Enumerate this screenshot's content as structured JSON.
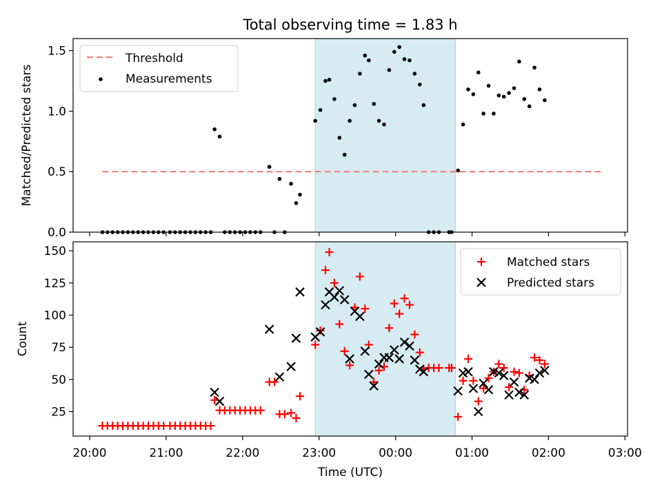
{
  "figure": {
    "title": "Total observing time = 1.83 h"
  },
  "chart_data": [
    {
      "type": "scatter",
      "panel": "top",
      "title": "Total observing time = 1.83 h",
      "xlabel": "",
      "ylabel": "Matched/Predicted stars",
      "xlim": [
        "20:00",
        "03:00"
      ],
      "ylim": [
        0,
        1.6
      ],
      "yticks": [
        "0.0",
        "0.5",
        "1.0",
        "1.5"
      ],
      "shaded_interval": [
        "22:57",
        "00:47"
      ],
      "legend_position": "top-left",
      "legend": [
        "Threshold",
        "Measurements"
      ],
      "threshold": {
        "name": "Threshold",
        "value": 0.5,
        "x_start": "20:10",
        "x_end": "02:41",
        "color": "#f08080"
      },
      "series": [
        {
          "name": "Measurements",
          "color": "#000000",
          "points": [
            [
              "20:10",
              0
            ],
            [
              "20:14",
              0
            ],
            [
              "20:18",
              0
            ],
            [
              "20:22",
              0
            ],
            [
              "20:26",
              0
            ],
            [
              "20:30",
              0
            ],
            [
              "20:34",
              0
            ],
            [
              "20:38",
              0
            ],
            [
              "20:42",
              0
            ],
            [
              "20:46",
              0
            ],
            [
              "20:50",
              0
            ],
            [
              "20:54",
              0
            ],
            [
              "20:58",
              0
            ],
            [
              "21:03",
              0
            ],
            [
              "21:07",
              0
            ],
            [
              "21:11",
              0
            ],
            [
              "21:15",
              0
            ],
            [
              "21:19",
              0
            ],
            [
              "21:23",
              0
            ],
            [
              "21:27",
              0
            ],
            [
              "21:31",
              0
            ],
            [
              "21:35",
              0
            ],
            [
              "21:38",
              0.85
            ],
            [
              "21:42",
              0.79
            ],
            [
              "21:46",
              0
            ],
            [
              "21:50",
              0
            ],
            [
              "21:54",
              0
            ],
            [
              "21:58",
              0
            ],
            [
              "22:02",
              0
            ],
            [
              "22:06",
              0
            ],
            [
              "22:10",
              0
            ],
            [
              "22:14",
              0
            ],
            [
              "22:21",
              0.54
            ],
            [
              "22:25",
              0
            ],
            [
              "22:29",
              0.44
            ],
            [
              "22:33",
              0
            ],
            [
              "22:38",
              0.4
            ],
            [
              "22:42",
              0.24
            ],
            [
              "22:45",
              0.31
            ],
            [
              "22:57",
              0.92
            ],
            [
              "23:01",
              1.01
            ],
            [
              "23:05",
              1.25
            ],
            [
              "23:08",
              1.26
            ],
            [
              "23:12",
              1.1
            ],
            [
              "23:16",
              0.78
            ],
            [
              "23:20",
              0.64
            ],
            [
              "23:24",
              0.92
            ],
            [
              "23:28",
              1.05
            ],
            [
              "23:32",
              1.31
            ],
            [
              "23:36",
              1.46
            ],
            [
              "23:39",
              1.42
            ],
            [
              "23:43",
              1.06
            ],
            [
              "23:47",
              0.92
            ],
            [
              "23:51",
              0.89
            ],
            [
              "23:55",
              1.34
            ],
            [
              "23:59",
              1.49
            ],
            [
              "00:03",
              1.53
            ],
            [
              "00:07",
              1.43
            ],
            [
              "00:11",
              1.42
            ],
            [
              "00:15",
              1.31
            ],
            [
              "00:19",
              1.22
            ],
            [
              "00:22",
              1.05
            ],
            [
              "00:26",
              0
            ],
            [
              "00:30",
              0
            ],
            [
              "00:34",
              0
            ],
            [
              "00:42",
              0
            ],
            [
              "00:44",
              0
            ],
            [
              "00:49",
              0.51
            ],
            [
              "00:53",
              0.89
            ],
            [
              "00:57",
              1.18
            ],
            [
              "01:01",
              1.14
            ],
            [
              "01:05",
              1.32
            ],
            [
              "01:09",
              0.98
            ],
            [
              "01:13",
              1.21
            ],
            [
              "01:17",
              0.98
            ],
            [
              "01:21",
              1.13
            ],
            [
              "01:25",
              1.12
            ],
            [
              "01:29",
              1.15
            ],
            [
              "01:33",
              1.19
            ],
            [
              "01:37",
              1.41
            ],
            [
              "01:41",
              1.1
            ],
            [
              "01:45",
              1.04
            ],
            [
              "01:49",
              1.36
            ],
            [
              "01:53",
              1.18
            ],
            [
              "01:57",
              1.09
            ]
          ]
        }
      ]
    },
    {
      "type": "scatter",
      "panel": "bottom",
      "xlabel": "Time (UTC)",
      "ylabel": "Count",
      "xlim": [
        "20:00",
        "03:00"
      ],
      "ylim": [
        6,
        157
      ],
      "xticks": [
        "20:00",
        "21:00",
        "22:00",
        "23:00",
        "00:00",
        "01:00",
        "02:00",
        "03:00"
      ],
      "yticks": [
        "25",
        "50",
        "75",
        "100",
        "125",
        "150"
      ],
      "shaded_interval": [
        "22:57",
        "00:47"
      ],
      "legend_position": "top-right",
      "legend": [
        "Matched stars",
        "Predicted stars"
      ],
      "series": [
        {
          "name": "Matched stars",
          "marker": "+",
          "color": "#ff0000",
          "points": [
            [
              "20:10",
              14
            ],
            [
              "20:14",
              14
            ],
            [
              "20:18",
              14
            ],
            [
              "20:22",
              14
            ],
            [
              "20:26",
              14
            ],
            [
              "20:30",
              14
            ],
            [
              "20:34",
              14
            ],
            [
              "20:38",
              14
            ],
            [
              "20:42",
              14
            ],
            [
              "20:46",
              14
            ],
            [
              "20:50",
              14
            ],
            [
              "20:54",
              14
            ],
            [
              "20:58",
              14
            ],
            [
              "21:03",
              14
            ],
            [
              "21:07",
              14
            ],
            [
              "21:11",
              14
            ],
            [
              "21:15",
              14
            ],
            [
              "21:19",
              14
            ],
            [
              "21:23",
              14
            ],
            [
              "21:27",
              14
            ],
            [
              "21:31",
              14
            ],
            [
              "21:35",
              14
            ],
            [
              "21:38",
              34
            ],
            [
              "21:42",
              26
            ],
            [
              "21:46",
              26
            ],
            [
              "21:50",
              26
            ],
            [
              "21:54",
              26
            ],
            [
              "21:58",
              26
            ],
            [
              "22:02",
              26
            ],
            [
              "22:06",
              26
            ],
            [
              "22:10",
              26
            ],
            [
              "22:14",
              26
            ],
            [
              "22:21",
              48
            ],
            [
              "22:25",
              48
            ],
            [
              "22:29",
              23
            ],
            [
              "22:33",
              23
            ],
            [
              "22:38",
              24
            ],
            [
              "22:42",
              20
            ],
            [
              "22:45",
              37
            ],
            [
              "22:57",
              77
            ],
            [
              "23:01",
              88
            ],
            [
              "23:05",
              135
            ],
            [
              "23:08",
              149
            ],
            [
              "23:12",
              125
            ],
            [
              "23:16",
              93
            ],
            [
              "23:20",
              72
            ],
            [
              "23:24",
              61
            ],
            [
              "23:28",
              106
            ],
            [
              "23:32",
              130
            ],
            [
              "23:36",
              105
            ],
            [
              "23:39",
              77
            ],
            [
              "23:43",
              48
            ],
            [
              "23:47",
              57
            ],
            [
              "23:51",
              60
            ],
            [
              "23:55",
              90
            ],
            [
              "23:59",
              109
            ],
            [
              "00:03",
              101
            ],
            [
              "00:07",
              113
            ],
            [
              "00:11",
              108
            ],
            [
              "00:15",
              85
            ],
            [
              "00:19",
              71
            ],
            [
              "00:22",
              58
            ],
            [
              "00:26",
              59
            ],
            [
              "00:30",
              59
            ],
            [
              "00:34",
              59
            ],
            [
              "00:42",
              59
            ],
            [
              "00:44",
              59
            ],
            [
              "00:49",
              21
            ],
            [
              "00:53",
              49
            ],
            [
              "00:57",
              66
            ],
            [
              "01:01",
              49
            ],
            [
              "01:05",
              33
            ],
            [
              "01:09",
              43
            ],
            [
              "01:13",
              51
            ],
            [
              "01:17",
              56
            ],
            [
              "01:21",
              62
            ],
            [
              "01:25",
              59
            ],
            [
              "01:29",
              44
            ],
            [
              "01:33",
              56
            ],
            [
              "01:37",
              55
            ],
            [
              "01:41",
              42
            ],
            [
              "01:45",
              53
            ],
            [
              "01:49",
              67
            ],
            [
              "01:53",
              65
            ],
            [
              "01:57",
              62
            ]
          ]
        },
        {
          "name": "Predicted stars",
          "marker": "x",
          "color": "#000000",
          "points": [
            [
              "21:38",
              40
            ],
            [
              "21:42",
              33
            ],
            [
              "22:21",
              89
            ],
            [
              "22:29",
              52
            ],
            [
              "22:38",
              60
            ],
            [
              "22:42",
              82
            ],
            [
              "22:45",
              118
            ],
            [
              "22:57",
              83
            ],
            [
              "23:01",
              87
            ],
            [
              "23:05",
              108
            ],
            [
              "23:08",
              118
            ],
            [
              "23:12",
              114
            ],
            [
              "23:16",
              119
            ],
            [
              "23:20",
              112
            ],
            [
              "23:24",
              66
            ],
            [
              "23:28",
              103
            ],
            [
              "23:32",
              99
            ],
            [
              "23:36",
              72
            ],
            [
              "23:39",
              54
            ],
            [
              "23:43",
              45
            ],
            [
              "23:47",
              62
            ],
            [
              "23:51",
              67
            ],
            [
              "23:55",
              67
            ],
            [
              "23:59",
              73
            ],
            [
              "00:03",
              66
            ],
            [
              "00:07",
              79
            ],
            [
              "00:11",
              76
            ],
            [
              "00:15",
              65
            ],
            [
              "00:19",
              58
            ],
            [
              "00:22",
              56
            ],
            [
              "00:49",
              41
            ],
            [
              "00:53",
              55
            ],
            [
              "00:57",
              56
            ],
            [
              "01:01",
              43
            ],
            [
              "01:05",
              25
            ],
            [
              "01:09",
              47
            ],
            [
              "01:13",
              42
            ],
            [
              "01:17",
              56
            ],
            [
              "01:21",
              55
            ],
            [
              "01:25",
              53
            ],
            [
              "01:29",
              38
            ],
            [
              "01:33",
              48
            ],
            [
              "01:37",
              40
            ],
            [
              "01:41",
              38
            ],
            [
              "01:45",
              51
            ],
            [
              "01:49",
              50
            ],
            [
              "01:53",
              55
            ],
            [
              "01:57",
              57
            ]
          ]
        }
      ]
    }
  ]
}
